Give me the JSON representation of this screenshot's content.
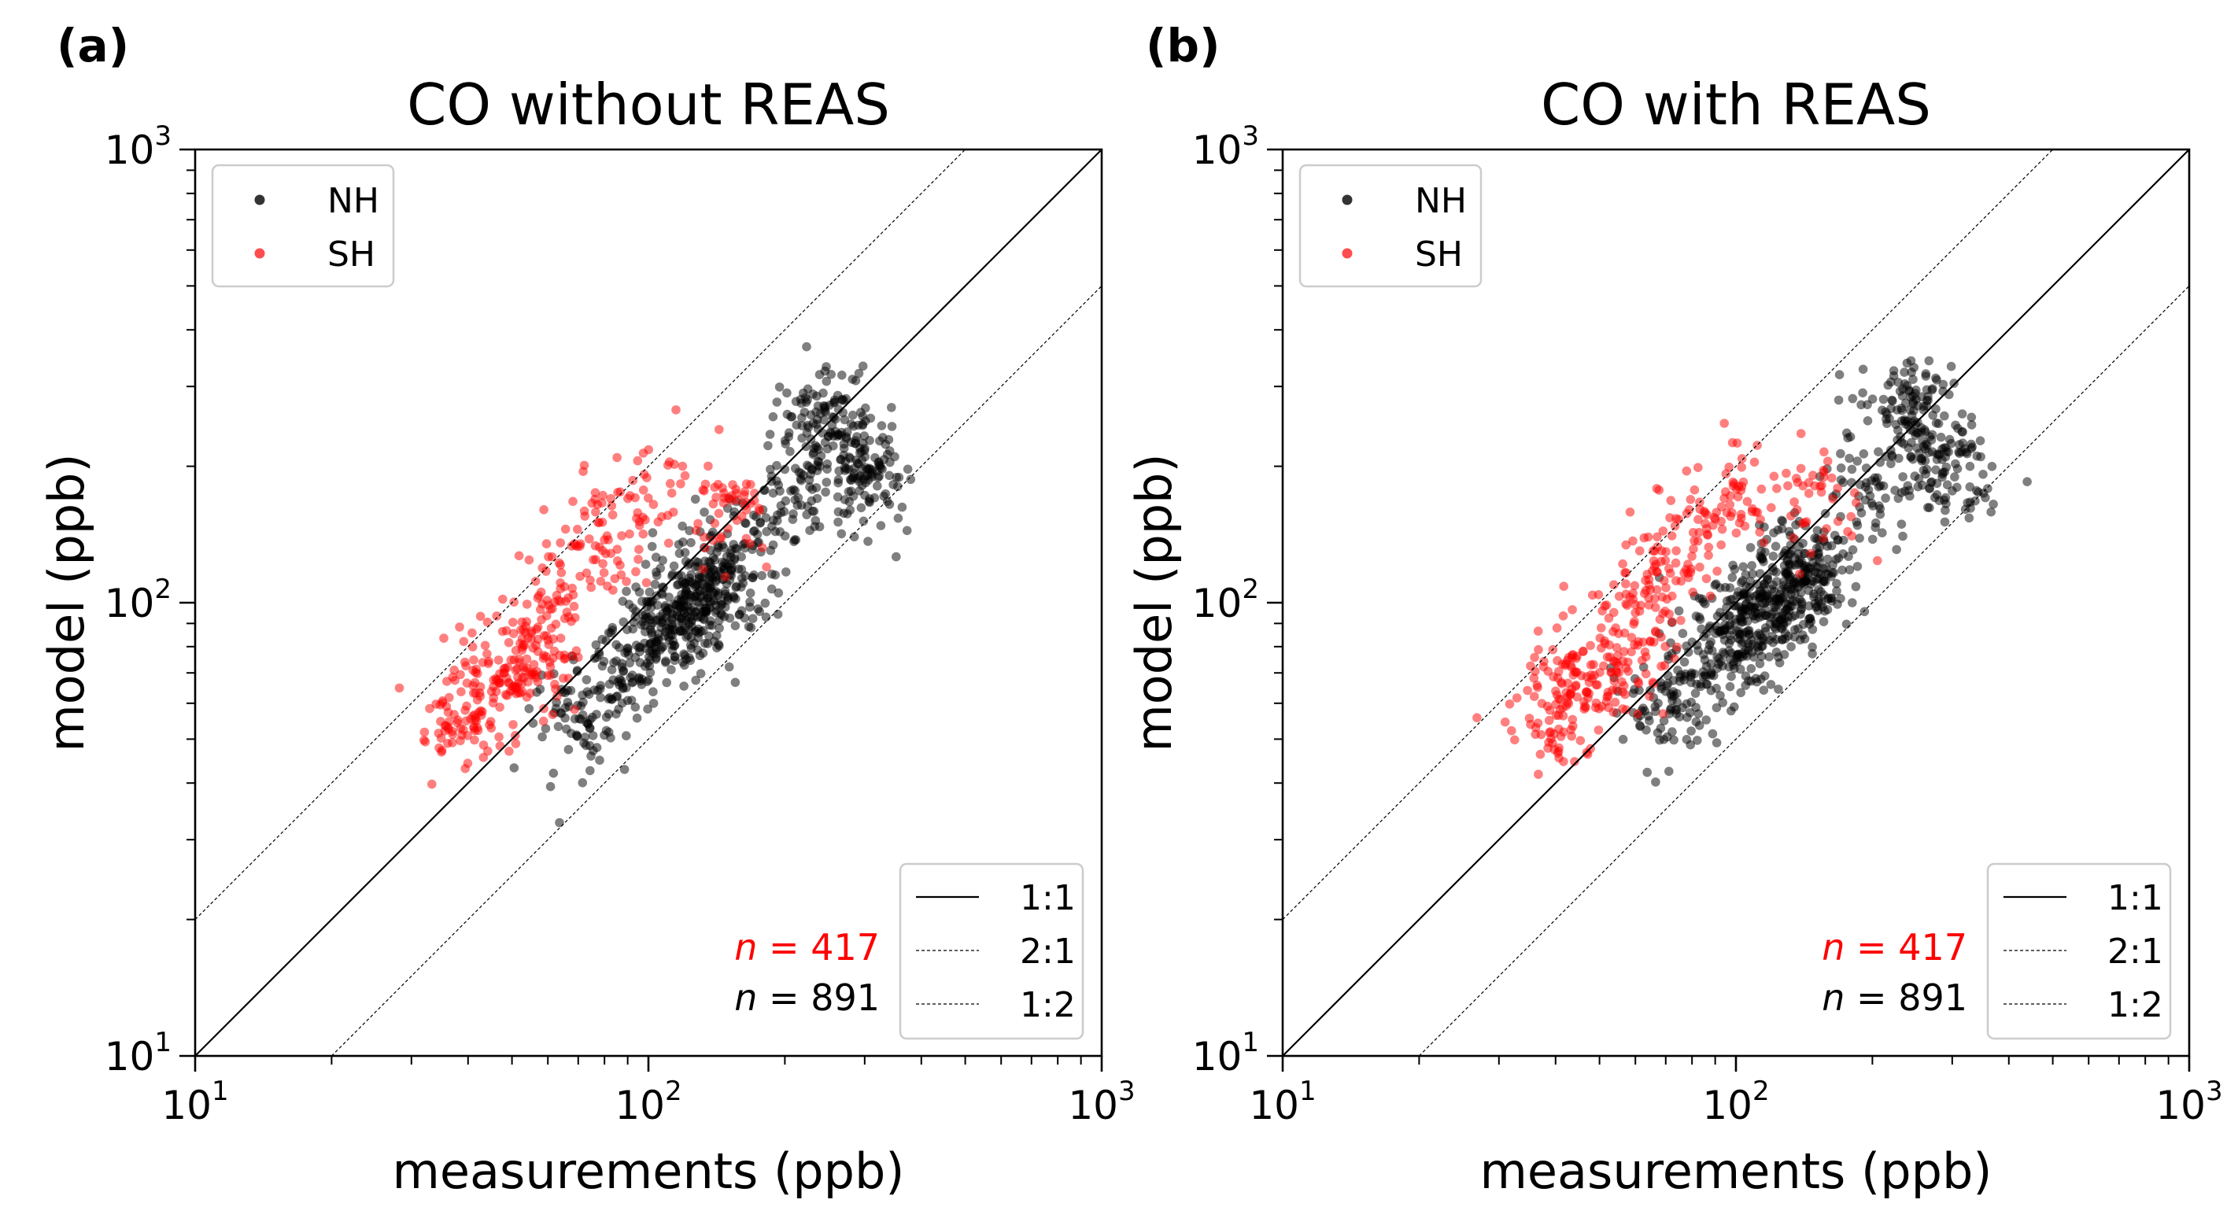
{
  "chart_data": [
    {
      "type": "scatter",
      "panel_label": "(a)",
      "title": "CO without REAS",
      "xlabel": "measurements (ppb)",
      "ylabel": "model (ppb)",
      "xscale": "log",
      "yscale": "log",
      "xlim": [
        10,
        1000
      ],
      "ylim": [
        10,
        1000
      ],
      "ticks": [
        {
          "base": "10",
          "exp": "1",
          "value": 10
        },
        {
          "base": "10",
          "exp": "2",
          "value": 100
        },
        {
          "base": "10",
          "exp": "3",
          "value": 1000
        }
      ],
      "point_legend": {
        "position": "upper left",
        "entries": [
          {
            "label": "NH",
            "color": "#333333"
          },
          {
            "label": "SH",
            "color": "#ff4d4d"
          }
        ]
      },
      "line_legend": {
        "position": "lower right",
        "entries": [
          {
            "label": "1:1",
            "style": "solid"
          },
          {
            "label": "2:1",
            "style": "dashed"
          },
          {
            "label": "1:2",
            "style": "dashed"
          }
        ]
      },
      "reference_lines": [
        {
          "label": "1:1",
          "ratio": 1
        },
        {
          "label": "2:1",
          "ratio": 2
        },
        {
          "label": "1:2",
          "ratio": 0.5
        }
      ],
      "counts": [
        {
          "prefix": "n",
          "text": " = 417",
          "color": "#ff0000"
        },
        {
          "prefix": "n",
          "text": " = 891",
          "color": "#000000"
        }
      ],
      "series": [
        {
          "name": "NH",
          "n": 891,
          "color": "#000000",
          "opacity": 0.5,
          "sample_points": [
            [
              70,
              55
            ],
            [
              85,
              70
            ],
            [
              100,
              80
            ],
            [
              110,
              90
            ],
            [
              120,
              95
            ],
            [
              130,
              100
            ],
            [
              140,
              110
            ],
            [
              150,
              120
            ],
            [
              200,
              170
            ],
            [
              240,
              260
            ],
            [
              260,
              220
            ],
            [
              300,
              190
            ]
          ]
        },
        {
          "name": "SH",
          "n": 417,
          "color": "#ff0000",
          "opacity": 0.5,
          "sample_points": [
            [
              38,
              52
            ],
            [
              42,
              60
            ],
            [
              45,
              65
            ],
            [
              50,
              70
            ],
            [
              55,
              75
            ],
            [
              60,
              80
            ],
            [
              65,
              100
            ],
            [
              70,
              120
            ],
            [
              80,
              150
            ],
            [
              100,
              170
            ],
            [
              150,
              160
            ]
          ]
        }
      ]
    },
    {
      "type": "scatter",
      "panel_label": "(b)",
      "title": "CO with REAS",
      "xlabel": "measurements (ppb)",
      "ylabel": "model (ppb)",
      "xscale": "log",
      "yscale": "log",
      "xlim": [
        10,
        1000
      ],
      "ylim": [
        10,
        1000
      ],
      "ticks": [
        {
          "base": "10",
          "exp": "1",
          "value": 10
        },
        {
          "base": "10",
          "exp": "2",
          "value": 100
        },
        {
          "base": "10",
          "exp": "3",
          "value": 1000
        }
      ],
      "point_legend": {
        "position": "upper left",
        "entries": [
          {
            "label": "NH",
            "color": "#333333"
          },
          {
            "label": "SH",
            "color": "#ff4d4d"
          }
        ]
      },
      "line_legend": {
        "position": "lower right",
        "entries": [
          {
            "label": "1:1",
            "style": "solid"
          },
          {
            "label": "2:1",
            "style": "dashed"
          },
          {
            "label": "1:2",
            "style": "dashed"
          }
        ]
      },
      "reference_lines": [
        {
          "label": "1:1",
          "ratio": 1
        },
        {
          "label": "2:1",
          "ratio": 2
        },
        {
          "label": "1:2",
          "ratio": 0.5
        }
      ],
      "counts": [
        {
          "prefix": "n",
          "text": " = 417",
          "color": "#ff0000"
        },
        {
          "prefix": "n",
          "text": " = 891",
          "color": "#000000"
        }
      ],
      "series": [
        {
          "name": "NH",
          "n": 891,
          "color": "#000000",
          "opacity": 0.5,
          "sample_points": [
            [
              70,
              58
            ],
            [
              85,
              72
            ],
            [
              100,
              85
            ],
            [
              110,
              92
            ],
            [
              120,
              100
            ],
            [
              130,
              105
            ],
            [
              140,
              115
            ],
            [
              150,
              125
            ],
            [
              200,
              180
            ],
            [
              240,
              270
            ],
            [
              260,
              230
            ],
            [
              300,
              200
            ]
          ]
        },
        {
          "name": "SH",
          "n": 417,
          "color": "#ff0000",
          "opacity": 0.5,
          "sample_points": [
            [
              38,
              53
            ],
            [
              42,
              62
            ],
            [
              45,
              68
            ],
            [
              50,
              72
            ],
            [
              55,
              78
            ],
            [
              60,
              85
            ],
            [
              65,
              105
            ],
            [
              70,
              125
            ],
            [
              80,
              155
            ],
            [
              100,
              175
            ],
            [
              150,
              165
            ]
          ]
        }
      ]
    }
  ]
}
